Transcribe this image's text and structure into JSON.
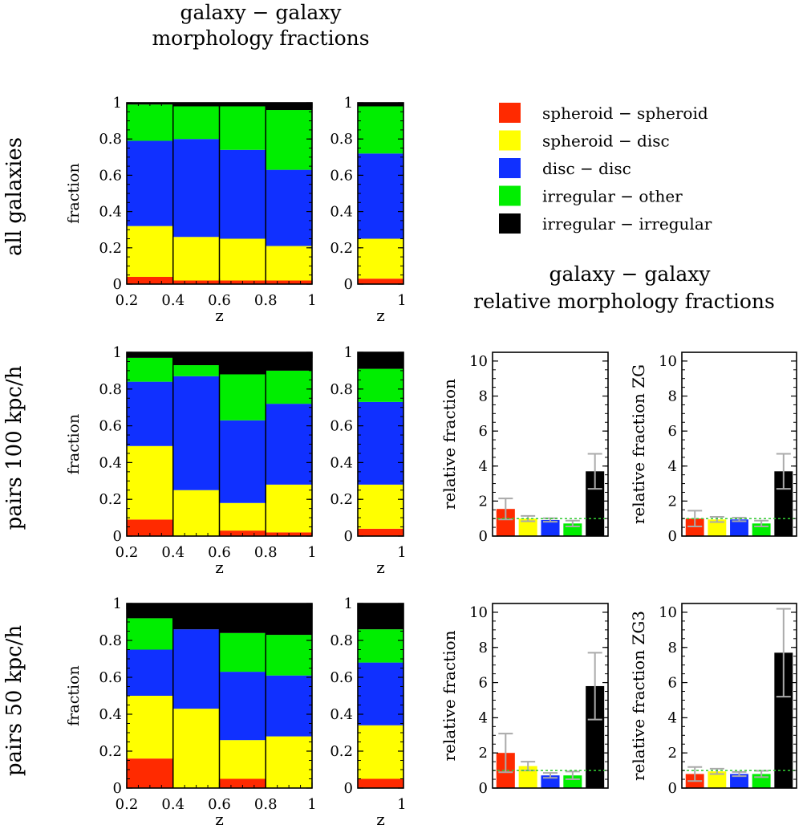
{
  "colors": {
    "spheroid_spheroid": "#ff2a00",
    "spheroid_disc": "#ffff00",
    "disc_disc": "#1030ff",
    "irregular_other": "#00ee00",
    "irregular_irregular": "#000000",
    "errorbar": "#aaaaaa",
    "reference_line": "#33cc33"
  },
  "titles": {
    "top": [
      "galaxy − galaxy",
      "morphology fractions"
    ],
    "relative": [
      "galaxy − galaxy",
      "relative morphology fractions"
    ]
  },
  "row_labels": [
    "all galaxies",
    "pairs 100 kpc/h",
    "pairs 50 kpc/h"
  ],
  "legend": [
    {
      "label": "spheroid − spheroid",
      "color_key": "spheroid_spheroid"
    },
    {
      "label": "spheroid − disc",
      "color_key": "spheroid_disc"
    },
    {
      "label": "disc − disc",
      "color_key": "disc_disc"
    },
    {
      "label": "irregular − other",
      "color_key": "irregular_other"
    },
    {
      "label": "irregular − irregular",
      "color_key": "irregular_irregular"
    }
  ],
  "chart_data": [
    {
      "id": "all-galaxies-z",
      "type": "bar",
      "stacked": true,
      "xlabel": "z",
      "ylabel": "fraction",
      "xlim": [
        0.2,
        1
      ],
      "ylim": [
        0,
        1
      ],
      "xticks": [
        "0.2",
        "0.4",
        "0.6",
        "0.8",
        "1"
      ],
      "yticks": [
        "0",
        "0.2",
        "0.4",
        "0.6",
        "0.8",
        "1"
      ],
      "bins": [
        [
          0.2,
          0.4
        ],
        [
          0.4,
          0.6
        ],
        [
          0.6,
          0.8
        ],
        [
          0.8,
          1.0
        ]
      ],
      "series": [
        {
          "name": "spheroid − spheroid",
          "values": [
            0.04,
            0.02,
            0.02,
            0.02
          ]
        },
        {
          "name": "spheroid − disc",
          "values": [
            0.28,
            0.24,
            0.23,
            0.19
          ]
        },
        {
          "name": "disc − disc",
          "values": [
            0.47,
            0.54,
            0.49,
            0.42
          ]
        },
        {
          "name": "irregular − other",
          "values": [
            0.2,
            0.18,
            0.24,
            0.33
          ]
        },
        {
          "name": "irregular − irregular",
          "values": [
            0.01,
            0.02,
            0.02,
            0.04
          ]
        }
      ]
    },
    {
      "id": "all-galaxies-total",
      "type": "bar",
      "stacked": true,
      "xlabel": "z",
      "xticks": [
        "1"
      ],
      "ylim": [
        0,
        1
      ],
      "yticks": [
        "0",
        "0.2",
        "0.4",
        "0.6",
        "0.8",
        "1"
      ],
      "series": [
        {
          "name": "spheroid − spheroid",
          "values": [
            0.03
          ]
        },
        {
          "name": "spheroid − disc",
          "values": [
            0.22
          ]
        },
        {
          "name": "disc − disc",
          "values": [
            0.47
          ]
        },
        {
          "name": "irregular − other",
          "values": [
            0.26
          ]
        },
        {
          "name": "irregular − irregular",
          "values": [
            0.02
          ]
        }
      ]
    },
    {
      "id": "pairs100-z",
      "type": "bar",
      "stacked": true,
      "xlabel": "z",
      "ylabel": "fraction",
      "xlim": [
        0.2,
        1
      ],
      "ylim": [
        0,
        1
      ],
      "xticks": [
        "0.2",
        "0.4",
        "0.6",
        "0.8",
        "1"
      ],
      "yticks": [
        "0",
        "0.2",
        "0.4",
        "0.6",
        "0.8",
        "1"
      ],
      "bins": [
        [
          0.2,
          0.4
        ],
        [
          0.4,
          0.6
        ],
        [
          0.6,
          0.8
        ],
        [
          0.8,
          1.0
        ]
      ],
      "series": [
        {
          "name": "spheroid − spheroid",
          "values": [
            0.09,
            0.0,
            0.03,
            0.02
          ]
        },
        {
          "name": "spheroid − disc",
          "values": [
            0.4,
            0.25,
            0.15,
            0.26
          ]
        },
        {
          "name": "disc − disc",
          "values": [
            0.35,
            0.62,
            0.45,
            0.44
          ]
        },
        {
          "name": "irregular − other",
          "values": [
            0.13,
            0.06,
            0.25,
            0.18
          ]
        },
        {
          "name": "irregular − irregular",
          "values": [
            0.03,
            0.07,
            0.12,
            0.1
          ]
        }
      ]
    },
    {
      "id": "pairs100-total",
      "type": "bar",
      "stacked": true,
      "xlabel": "z",
      "xticks": [
        "1"
      ],
      "ylim": [
        0,
        1
      ],
      "yticks": [
        "0",
        "0.2",
        "0.4",
        "0.6",
        "0.8",
        "1"
      ],
      "series": [
        {
          "name": "spheroid − spheroid",
          "values": [
            0.04
          ]
        },
        {
          "name": "spheroid − disc",
          "values": [
            0.24
          ]
        },
        {
          "name": "disc − disc",
          "values": [
            0.45
          ]
        },
        {
          "name": "irregular − other",
          "values": [
            0.18
          ]
        },
        {
          "name": "irregular − irregular",
          "values": [
            0.09
          ]
        }
      ]
    },
    {
      "id": "pairs100-relative",
      "type": "bar",
      "ylabel": "relative fraction",
      "ylim": [
        0,
        10.5
      ],
      "yticks": [
        "0",
        "2",
        "4",
        "6",
        "8",
        "10"
      ],
      "reference_line": 1,
      "series": [
        {
          "name": "spheroid − spheroid",
          "value": 1.55,
          "err_low": 0.95,
          "err_high": 2.15
        },
        {
          "name": "spheroid − disc",
          "value": 1.0,
          "err_low": 0.85,
          "err_high": 1.15
        },
        {
          "name": "disc − disc",
          "value": 0.92,
          "err_low": 0.82,
          "err_high": 1.02
        },
        {
          "name": "irregular − other",
          "value": 0.72,
          "err_low": 0.55,
          "err_high": 0.88
        },
        {
          "name": "irregular − irregular",
          "value": 3.7,
          "err_low": 2.7,
          "err_high": 4.7
        }
      ]
    },
    {
      "id": "pairs100-relative-zg",
      "type": "bar",
      "ylabel": "relative fraction ZG",
      "ylim": [
        0,
        10.5
      ],
      "yticks": [
        "0",
        "2",
        "4",
        "6",
        "8",
        "10"
      ],
      "reference_line": 1,
      "series": [
        {
          "name": "spheroid − spheroid",
          "value": 1.0,
          "err_low": 0.55,
          "err_high": 1.45
        },
        {
          "name": "spheroid − disc",
          "value": 0.95,
          "err_low": 0.8,
          "err_high": 1.1
        },
        {
          "name": "disc − disc",
          "value": 0.95,
          "err_low": 0.85,
          "err_high": 1.05
        },
        {
          "name": "irregular − other",
          "value": 0.72,
          "err_low": 0.55,
          "err_high": 0.88
        },
        {
          "name": "irregular − irregular",
          "value": 3.7,
          "err_low": 2.7,
          "err_high": 4.7
        }
      ]
    },
    {
      "id": "pairs50-z",
      "type": "bar",
      "stacked": true,
      "xlabel": "z",
      "ylabel": "fraction",
      "xlim": [
        0.2,
        1
      ],
      "ylim": [
        0,
        1
      ],
      "xticks": [
        "0.2",
        "0.4",
        "0.6",
        "0.8",
        "1"
      ],
      "yticks": [
        "0",
        "0.2",
        "0.4",
        "0.6",
        "0.8",
        "1"
      ],
      "bins": [
        [
          0.2,
          0.4
        ],
        [
          0.4,
          0.6
        ],
        [
          0.6,
          0.8
        ],
        [
          0.8,
          1.0
        ]
      ],
      "series": [
        {
          "name": "spheroid − spheroid",
          "values": [
            0.16,
            0.0,
            0.05,
            0.0
          ]
        },
        {
          "name": "spheroid − disc",
          "values": [
            0.34,
            0.43,
            0.21,
            0.28
          ]
        },
        {
          "name": "disc − disc",
          "values": [
            0.25,
            0.43,
            0.37,
            0.33
          ]
        },
        {
          "name": "irregular − other",
          "values": [
            0.17,
            0.0,
            0.21,
            0.22
          ]
        },
        {
          "name": "irregular − irregular",
          "values": [
            0.08,
            0.14,
            0.16,
            0.17
          ]
        }
      ]
    },
    {
      "id": "pairs50-total",
      "type": "bar",
      "stacked": true,
      "xlabel": "z",
      "xticks": [
        "1"
      ],
      "ylim": [
        0,
        1
      ],
      "yticks": [
        "0",
        "0.2",
        "0.4",
        "0.6",
        "0.8",
        "1"
      ],
      "series": [
        {
          "name": "spheroid − spheroid",
          "values": [
            0.05
          ]
        },
        {
          "name": "spheroid − disc",
          "values": [
            0.29
          ]
        },
        {
          "name": "disc − disc",
          "values": [
            0.34
          ]
        },
        {
          "name": "irregular − other",
          "values": [
            0.18
          ]
        },
        {
          "name": "irregular − irregular",
          "values": [
            0.14
          ]
        }
      ]
    },
    {
      "id": "pairs50-relative",
      "type": "bar",
      "ylabel": "relative fraction",
      "ylim": [
        0,
        10.5
      ],
      "yticks": [
        "0",
        "2",
        "4",
        "6",
        "8",
        "10"
      ],
      "reference_line": 1,
      "series": [
        {
          "name": "spheroid − spheroid",
          "value": 2.0,
          "err_low": 0.9,
          "err_high": 3.1
        },
        {
          "name": "spheroid − disc",
          "value": 1.25,
          "err_low": 1.0,
          "err_high": 1.5
        },
        {
          "name": "disc − disc",
          "value": 0.72,
          "err_low": 0.58,
          "err_high": 0.86
        },
        {
          "name": "irregular − other",
          "value": 0.72,
          "err_low": 0.5,
          "err_high": 0.94
        },
        {
          "name": "irregular − irregular",
          "value": 5.8,
          "err_low": 3.9,
          "err_high": 7.7
        }
      ]
    },
    {
      "id": "pairs50-relative-zg3",
      "type": "bar",
      "ylabel": "relative fraction ZG3",
      "ylim": [
        0,
        10.5
      ],
      "yticks": [
        "0",
        "2",
        "4",
        "6",
        "8",
        "10"
      ],
      "reference_line": 1,
      "series": [
        {
          "name": "spheroid − spheroid",
          "value": 0.8,
          "err_low": 0.4,
          "err_high": 1.2
        },
        {
          "name": "spheroid − disc",
          "value": 0.95,
          "err_low": 0.8,
          "err_high": 1.1
        },
        {
          "name": "disc − disc",
          "value": 0.8,
          "err_low": 0.68,
          "err_high": 0.92
        },
        {
          "name": "irregular − other",
          "value": 0.8,
          "err_low": 0.62,
          "err_high": 0.98
        },
        {
          "name": "irregular − irregular",
          "value": 7.7,
          "err_low": 5.2,
          "err_high": 10.2
        }
      ]
    }
  ]
}
